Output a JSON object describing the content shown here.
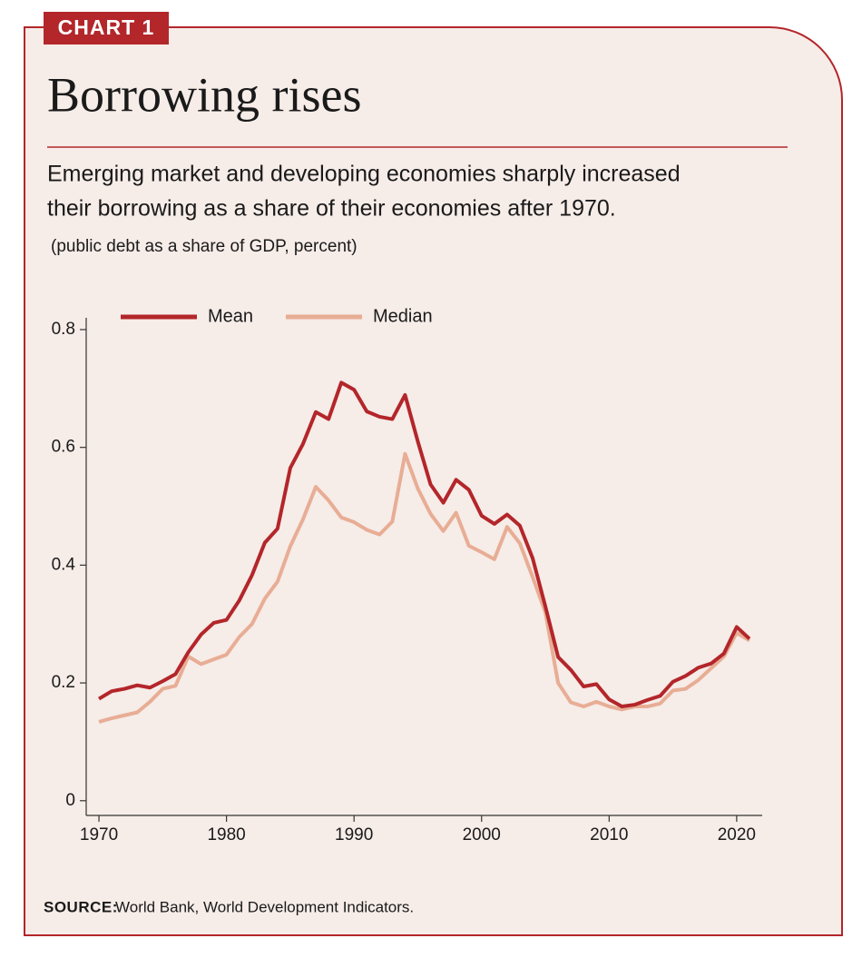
{
  "chart_data": {
    "type": "line",
    "tag": "CHART 1",
    "title": "Borrowing rises",
    "subtitle": [
      "Emerging market and developing economies sharply increased",
      "their borrowing as a share of their economies after 1970."
    ],
    "note": "(public debt as a share of GDP, percent)",
    "source_label": "SOURCE:",
    "source": "World Bank, World Development Indicators.",
    "x": [
      1970,
      1971,
      1972,
      1973,
      1974,
      1975,
      1976,
      1977,
      1978,
      1979,
      1980,
      1981,
      1982,
      1983,
      1984,
      1985,
      1986,
      1987,
      1988,
      1989,
      1990,
      1991,
      1992,
      1993,
      1994,
      1995,
      1996,
      1997,
      1998,
      1999,
      2000,
      2001,
      2002,
      2003,
      2004,
      2005,
      2006,
      2007,
      2008,
      2009,
      2010,
      2011,
      2012,
      2013,
      2014,
      2015,
      2016,
      2017,
      2018,
      2019,
      2020,
      2021
    ],
    "series": [
      {
        "name": "Mean",
        "color": "#b3262a",
        "values": [
          0.173,
          0.186,
          0.19,
          0.196,
          0.192,
          0.203,
          0.215,
          0.252,
          0.282,
          0.302,
          0.307,
          0.34,
          0.383,
          0.438,
          0.462,
          0.565,
          0.606,
          0.66,
          0.648,
          0.71,
          0.698,
          0.661,
          0.652,
          0.648,
          0.689,
          0.61,
          0.537,
          0.506,
          0.545,
          0.528,
          0.484,
          0.47,
          0.486,
          0.467,
          0.412,
          0.33,
          0.244,
          0.222,
          0.194,
          0.198,
          0.172,
          0.16,
          0.163,
          0.171,
          0.178,
          0.202,
          0.212,
          0.226,
          0.233,
          0.25,
          0.295,
          0.275
        ]
      },
      {
        "name": "Median",
        "color": "#e8ad95",
        "values": [
          0.134,
          0.14,
          0.145,
          0.15,
          0.168,
          0.19,
          0.195,
          0.245,
          0.232,
          0.24,
          0.248,
          0.278,
          0.3,
          0.343,
          0.372,
          0.432,
          0.478,
          0.533,
          0.51,
          0.481,
          0.473,
          0.46,
          0.452,
          0.474,
          0.589,
          0.53,
          0.487,
          0.458,
          0.489,
          0.433,
          0.422,
          0.41,
          0.465,
          0.437,
          0.38,
          0.32,
          0.2,
          0.167,
          0.16,
          0.168,
          0.16,
          0.155,
          0.16,
          0.16,
          0.165,
          0.187,
          0.19,
          0.205,
          0.225,
          0.245,
          0.285,
          0.272
        ]
      }
    ],
    "xlim": [
      1969,
      2022
    ],
    "xticks": [
      1970,
      1980,
      1990,
      2000,
      2010,
      2020
    ],
    "ylim": [
      -0.025,
      0.82
    ],
    "yticks": [
      0,
      0.2,
      0.4,
      0.6,
      0.8
    ],
    "grid": false
  }
}
